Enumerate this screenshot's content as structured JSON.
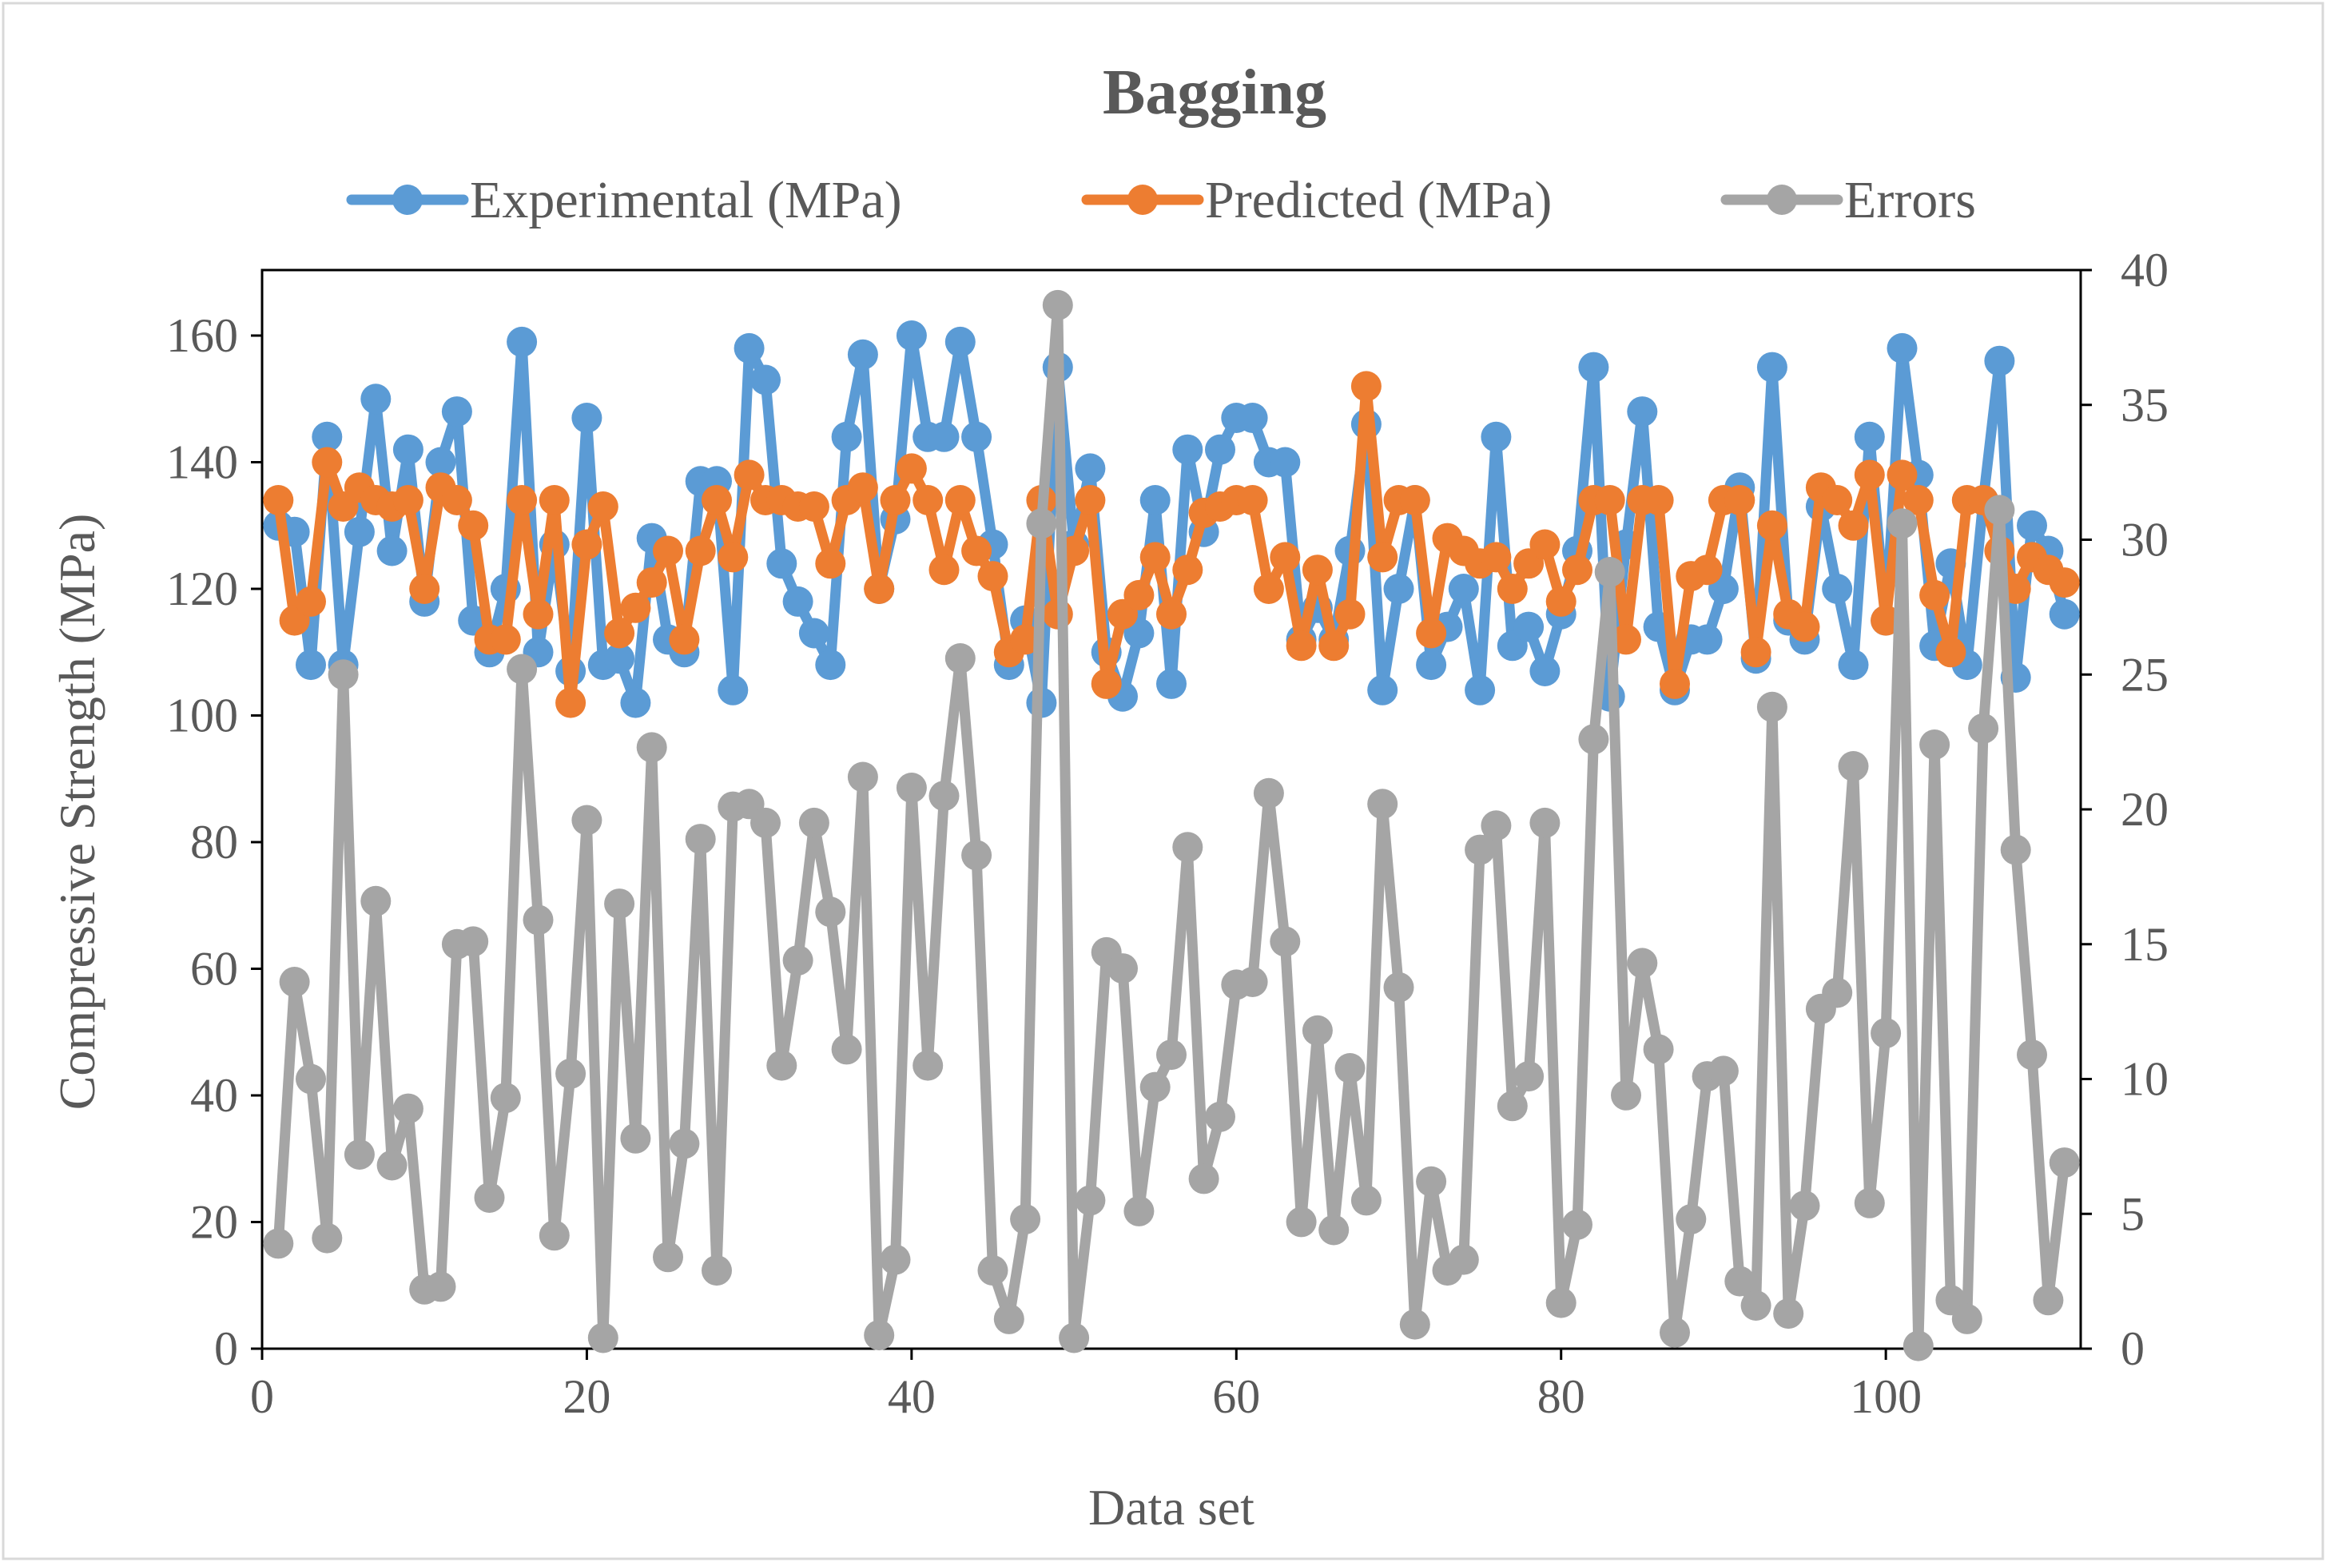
{
  "chart_data": {
    "type": "line",
    "title": "Bagging",
    "xlabel": "Data set",
    "ylabel": "Compressive Strength (MPa)",
    "y2label": "",
    "xlim": [
      0,
      112
    ],
    "ylim": [
      0,
      170
    ],
    "y2lim": [
      0,
      40
    ],
    "xticks": [
      "0",
      "20",
      "40",
      "60",
      "80",
      "100"
    ],
    "yticks": [
      "0",
      "20",
      "40",
      "60",
      "80",
      "100",
      "120",
      "140",
      "160"
    ],
    "y2ticks": [
      "0",
      "5",
      "10",
      "15",
      "20",
      "25",
      "30",
      "35",
      "40"
    ],
    "grid": false,
    "legend_position": "top",
    "colors": {
      "Experimental (MPa)": "#5B9BD5",
      "Predicted (MPa)": "#ED7D31",
      "Errors": "#A5A5A5"
    },
    "x": [
      1,
      2,
      3,
      4,
      5,
      6,
      7,
      8,
      9,
      10,
      11,
      12,
      13,
      14,
      15,
      16,
      17,
      18,
      19,
      20,
      21,
      22,
      23,
      24,
      25,
      26,
      27,
      28,
      29,
      30,
      31,
      32,
      33,
      34,
      35,
      36,
      37,
      38,
      39,
      40,
      41,
      42,
      43,
      44,
      45,
      46,
      47,
      48,
      49,
      50,
      51,
      52,
      53,
      54,
      55,
      56,
      57,
      58,
      59,
      60,
      61,
      62,
      63,
      64,
      65,
      66,
      67,
      68,
      69,
      70,
      71,
      72,
      73,
      74,
      75,
      76,
      77,
      78,
      79,
      80,
      81,
      82,
      83,
      84,
      85,
      86,
      87,
      88,
      89,
      90,
      91,
      92,
      93,
      94,
      95,
      96,
      97,
      98,
      99,
      100,
      101,
      102,
      103,
      104,
      105,
      106,
      107,
      108,
      109,
      110,
      111
    ],
    "series": [
      {
        "name": "Experimental (MPa)",
        "axis": "left",
        "values": [
          130,
          129,
          108,
          144,
          108,
          129,
          150,
          126,
          142,
          118,
          140,
          148,
          115,
          110,
          120,
          159,
          110,
          127,
          107,
          147,
          108,
          109,
          102,
          128,
          112,
          110,
          137,
          137,
          104,
          158,
          153,
          124,
          118,
          113,
          108,
          144,
          157,
          120,
          131,
          160,
          144,
          144,
          159,
          144,
          127,
          108,
          115,
          102,
          155,
          127,
          139,
          110,
          103,
          113,
          134,
          105,
          142,
          129,
          142,
          147,
          147,
          140,
          140,
          112,
          117,
          112,
          126,
          146,
          104,
          120,
          134,
          108,
          114,
          120,
          104,
          144,
          111,
          114,
          107,
          116,
          126,
          155,
          103,
          127,
          148,
          114,
          104,
          112,
          112,
          120,
          136,
          109,
          155,
          115,
          112,
          133,
          120,
          108,
          144,
          115,
          158,
          138,
          111,
          124,
          108,
          134,
          156,
          106,
          130,
          126,
          116
        ]
      },
      {
        "name": "Predicted (MPa)",
        "axis": "left",
        "values": [
          134,
          115,
          118,
          140,
          133,
          136,
          134,
          133,
          134,
          120,
          136,
          134,
          130,
          112,
          112,
          134,
          116,
          134,
          102,
          127,
          133,
          113,
          117,
          121,
          126,
          112,
          126,
          134,
          125,
          138,
          134,
          134,
          133,
          133,
          124,
          134,
          136,
          120,
          134,
          139,
          134,
          123,
          134,
          126,
          122,
          110,
          112,
          134,
          116,
          126,
          134,
          105,
          116,
          119,
          125,
          116,
          123,
          132,
          133,
          134,
          134,
          120,
          125,
          111,
          123,
          111,
          116,
          152,
          125,
          134,
          134,
          113,
          128,
          126,
          124,
          125,
          120,
          124,
          127,
          118,
          123,
          134,
          134,
          112,
          134,
          134,
          105,
          122,
          123,
          134,
          134,
          110,
          130,
          116,
          114,
          136,
          134,
          130,
          138,
          115,
          138,
          134,
          119,
          110,
          134,
          134,
          126,
          120,
          125,
          123,
          121
        ]
      },
      {
        "name": "Errors",
        "axis": "right",
        "values": [
          3.9,
          13.6,
          10.0,
          4.1,
          25.0,
          7.2,
          16.6,
          6.8,
          8.9,
          2.2,
          2.3,
          15.0,
          15.1,
          5.6,
          9.3,
          25.2,
          15.9,
          4.2,
          10.2,
          19.6,
          0.4,
          16.5,
          7.8,
          22.3,
          3.4,
          7.6,
          18.9,
          2.9,
          20.1,
          20.2,
          19.5,
          10.5,
          14.4,
          19.5,
          16.2,
          11.1,
          21.2,
          0.5,
          3.3,
          20.8,
          10.5,
          20.5,
          25.6,
          18.3,
          2.9,
          1.1,
          4.8,
          30.6,
          38.7,
          0.4,
          5.5,
          14.7,
          14.1,
          5.1,
          9.7,
          10.9,
          18.6,
          6.3,
          8.6,
          13.5,
          13.6,
          20.6,
          15.1,
          4.7,
          11.8,
          4.4,
          10.4,
          5.5,
          20.2,
          13.4,
          0.9,
          6.2,
          2.9,
          3.3,
          18.5,
          19.4,
          9.0,
          10.1,
          19.5,
          1.7,
          4.6,
          22.6,
          28.8,
          9.4,
          14.3,
          11.1,
          0.6,
          4.8,
          10.1,
          10.3,
          2.5,
          1.6,
          23.8,
          1.3,
          5.3,
          12.6,
          13.2,
          21.6,
          5.4,
          11.7,
          30.6,
          0.1,
          22.4,
          1.8,
          1.1,
          23.0,
          31.1,
          18.5,
          10.9,
          1.8,
          6.9
        ]
      }
    ]
  }
}
